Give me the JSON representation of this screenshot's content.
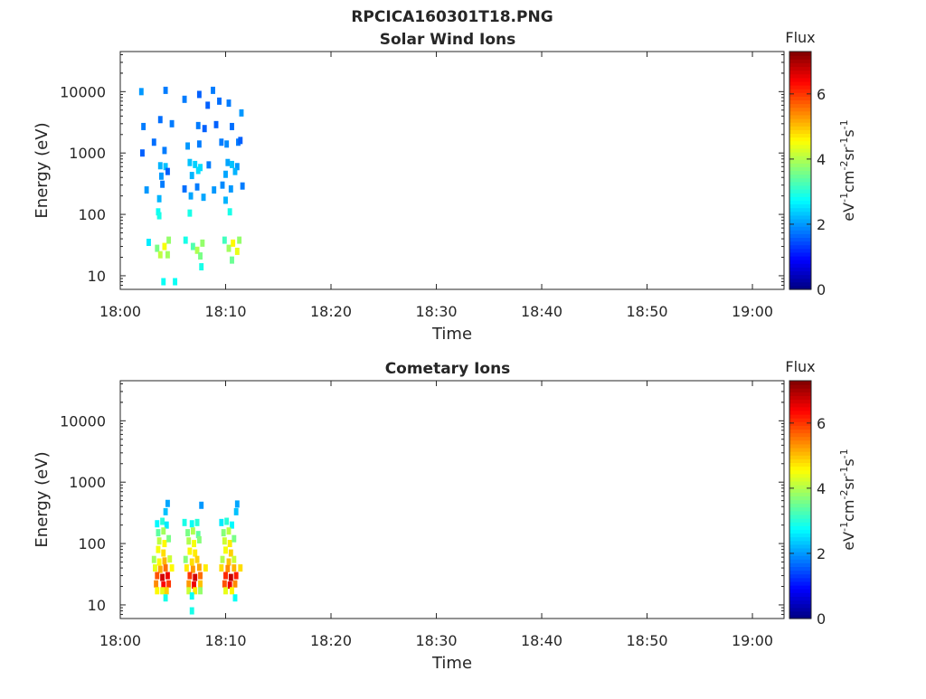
{
  "figure": {
    "title": "RPCICA160301T18.PNG"
  },
  "colorbar": {
    "label": "Flux",
    "unit_base": "eV",
    "unit_parts": [
      {
        "t": "eV",
        "sup": false
      },
      {
        "t": "-1",
        "sup": true
      },
      {
        "t": "cm",
        "sup": false
      },
      {
        "t": "-2",
        "sup": true
      },
      {
        "t": "sr",
        "sup": false
      },
      {
        "t": "-1",
        "sup": true
      },
      {
        "t": "s",
        "sup": false
      },
      {
        "t": "-1",
        "sup": true
      }
    ],
    "range": [
      0,
      7.3
    ],
    "ticks": [
      "0",
      "2",
      "4",
      "6"
    ],
    "colormap": "jet"
  },
  "chart_data": [
    {
      "type": "heatmap",
      "title": "Solar Wind Ions",
      "xlabel": "Time",
      "ylabel": "Energy (eV)",
      "xlim": [
        "18:00",
        "19:03"
      ],
      "x_ticks": [
        "18:00",
        "18:10",
        "18:20",
        "18:30",
        "18:40",
        "18:50",
        "19:00"
      ],
      "ylim": [
        6,
        45000
      ],
      "y_scale": "log",
      "y_ticks": [
        "10",
        "100",
        "1000",
        "10000"
      ],
      "cells": [
        [
          2.0,
          10000,
          2.0
        ],
        [
          4.3,
          10500,
          1.8
        ],
        [
          6.1,
          7500,
          1.8
        ],
        [
          7.5,
          9000,
          1.6
        ],
        [
          8.3,
          6000,
          1.6
        ],
        [
          8.8,
          10500,
          1.8
        ],
        [
          9.4,
          7000,
          1.7
        ],
        [
          10.3,
          6500,
          1.8
        ],
        [
          11.5,
          4500,
          2.0
        ],
        [
          2.2,
          2700,
          1.8
        ],
        [
          3.8,
          3500,
          1.7
        ],
        [
          4.9,
          3000,
          1.8
        ],
        [
          7.4,
          2800,
          1.8
        ],
        [
          8.0,
          2500,
          1.6
        ],
        [
          9.1,
          2900,
          1.6
        ],
        [
          10.6,
          2700,
          1.7
        ],
        [
          11.2,
          1500,
          1.8
        ],
        [
          2.1,
          1000,
          1.6
        ],
        [
          3.2,
          1500,
          1.7
        ],
        [
          4.2,
          1100,
          1.8
        ],
        [
          6.4,
          1300,
          2.0
        ],
        [
          7.5,
          1400,
          1.8
        ],
        [
          9.6,
          1500,
          1.8
        ],
        [
          10.1,
          1400,
          1.9
        ],
        [
          11.4,
          1600,
          1.6
        ],
        [
          3.8,
          620,
          2.2
        ],
        [
          4.3,
          600,
          2.3
        ],
        [
          6.6,
          700,
          2.3
        ],
        [
          7.1,
          650,
          2.4
        ],
        [
          7.6,
          580,
          2.5
        ],
        [
          8.4,
          640,
          1.8
        ],
        [
          10.2,
          700,
          2.1
        ],
        [
          10.6,
          650,
          2.3
        ],
        [
          11.1,
          600,
          2.0
        ],
        [
          3.9,
          420,
          2.0
        ],
        [
          4.5,
          500,
          1.6
        ],
        [
          6.8,
          430,
          2.2
        ],
        [
          7.4,
          520,
          2.5
        ],
        [
          10.0,
          450,
          2.1
        ],
        [
          10.9,
          500,
          2.2
        ],
        [
          2.5,
          250,
          2.0
        ],
        [
          4.0,
          310,
          1.8
        ],
        [
          6.1,
          260,
          1.7
        ],
        [
          7.3,
          280,
          1.8
        ],
        [
          8.9,
          250,
          2.0
        ],
        [
          9.7,
          300,
          1.9
        ],
        [
          10.5,
          260,
          2.0
        ],
        [
          11.6,
          290,
          1.8
        ],
        [
          3.7,
          180,
          2.2
        ],
        [
          6.7,
          200,
          2.1
        ],
        [
          7.9,
          190,
          2.1
        ],
        [
          10.0,
          170,
          2.2
        ],
        [
          3.6,
          110,
          2.8
        ],
        [
          3.7,
          95,
          2.9
        ],
        [
          6.6,
          105,
          2.9
        ],
        [
          10.4,
          110,
          2.9
        ],
        [
          2.7,
          35,
          2.6
        ],
        [
          3.5,
          28,
          3.6
        ],
        [
          3.8,
          22,
          4.1
        ],
        [
          4.2,
          30,
          4.5
        ],
        [
          4.6,
          38,
          3.8
        ],
        [
          4.5,
          22,
          3.9
        ],
        [
          6.2,
          38,
          2.9
        ],
        [
          6.9,
          30,
          3.3
        ],
        [
          7.3,
          26,
          4.0
        ],
        [
          7.8,
          34,
          3.8
        ],
        [
          7.6,
          21,
          3.6
        ],
        [
          7.7,
          14,
          2.9
        ],
        [
          9.9,
          38,
          3.2
        ],
        [
          10.3,
          28,
          3.9
        ],
        [
          10.7,
          34,
          4.6
        ],
        [
          11.1,
          25,
          4.4
        ],
        [
          10.6,
          18,
          3.5
        ],
        [
          11.3,
          38,
          3.8
        ],
        [
          4.1,
          8,
          2.8
        ],
        [
          5.2,
          8,
          2.8
        ]
      ]
    },
    {
      "type": "heatmap",
      "title": "Cometary Ions",
      "xlabel": "Time",
      "ylabel": "Energy (eV)",
      "xlim": [
        "18:00",
        "19:03"
      ],
      "x_ticks": [
        "18:00",
        "18:10",
        "18:20",
        "18:30",
        "18:40",
        "18:50",
        "19:00"
      ],
      "ylim": [
        6,
        45000
      ],
      "y_scale": "log",
      "y_ticks": [
        "10",
        "100",
        "1000",
        "10000"
      ],
      "cells": [
        [
          4.5,
          450,
          2.1
        ],
        [
          4.3,
          330,
          2.3
        ],
        [
          7.7,
          420,
          2.0
        ],
        [
          11.1,
          440,
          2.1
        ],
        [
          11.0,
          330,
          2.3
        ],
        [
          3.5,
          210,
          2.7
        ],
        [
          4.0,
          230,
          3.0
        ],
        [
          4.4,
          200,
          2.6
        ],
        [
          6.1,
          220,
          2.9
        ],
        [
          6.8,
          210,
          2.8
        ],
        [
          7.3,
          220,
          3.0
        ],
        [
          9.6,
          220,
          2.6
        ],
        [
          10.1,
          230,
          3.0
        ],
        [
          10.6,
          200,
          2.7
        ],
        [
          3.6,
          150,
          3.4
        ],
        [
          4.1,
          160,
          3.9
        ],
        [
          6.4,
          150,
          3.6
        ],
        [
          6.9,
          160,
          4.0
        ],
        [
          7.4,
          140,
          3.4
        ],
        [
          9.8,
          150,
          3.7
        ],
        [
          10.3,
          160,
          4.1
        ],
        [
          3.7,
          110,
          4.1
        ],
        [
          4.2,
          100,
          4.6
        ],
        [
          4.6,
          120,
          3.6
        ],
        [
          6.5,
          110,
          4.0
        ],
        [
          7.0,
          100,
          4.5
        ],
        [
          7.5,
          115,
          3.7
        ],
        [
          9.9,
          110,
          4.2
        ],
        [
          10.4,
          100,
          4.7
        ],
        [
          10.8,
          120,
          3.6
        ],
        [
          3.6,
          80,
          4.5
        ],
        [
          4.1,
          70,
          4.8
        ],
        [
          6.6,
          75,
          4.6
        ],
        [
          7.1,
          70,
          4.7
        ],
        [
          10.0,
          78,
          4.5
        ],
        [
          10.5,
          70,
          4.9
        ],
        [
          3.2,
          55,
          3.9
        ],
        [
          3.7,
          50,
          4.6
        ],
        [
          4.2,
          52,
          5.1
        ],
        [
          4.7,
          56,
          4.2
        ],
        [
          6.2,
          55,
          3.7
        ],
        [
          6.8,
          50,
          4.8
        ],
        [
          7.3,
          55,
          4.9
        ],
        [
          9.7,
          55,
          4.0
        ],
        [
          10.3,
          50,
          5.0
        ],
        [
          10.8,
          55,
          4.2
        ],
        [
          3.3,
          40,
          4.4
        ],
        [
          3.8,
          38,
          5.2
        ],
        [
          4.3,
          40,
          5.6
        ],
        [
          4.9,
          40,
          4.6
        ],
        [
          6.3,
          40,
          4.7
        ],
        [
          6.9,
          38,
          5.3
        ],
        [
          7.5,
          41,
          5.2
        ],
        [
          8.1,
          40,
          4.7
        ],
        [
          9.6,
          40,
          4.8
        ],
        [
          10.2,
          39,
          5.4
        ],
        [
          10.8,
          40,
          5.1
        ],
        [
          11.4,
          40,
          4.8
        ],
        [
          3.5,
          30,
          5.8
        ],
        [
          4.0,
          28,
          6.7
        ],
        [
          4.5,
          30,
          6.5
        ],
        [
          6.6,
          30,
          6.0
        ],
        [
          7.1,
          28,
          6.7
        ],
        [
          7.6,
          30,
          5.6
        ],
        [
          10.0,
          30,
          6.1
        ],
        [
          10.5,
          28,
          6.8
        ],
        [
          11.0,
          30,
          6.2
        ],
        [
          3.4,
          22,
          5.4
        ],
        [
          4.1,
          21,
          6.4
        ],
        [
          4.6,
          22,
          6.0
        ],
        [
          6.5,
          22,
          5.3
        ],
        [
          7.0,
          21,
          6.5
        ],
        [
          7.6,
          22,
          5.0
        ],
        [
          9.9,
          22,
          5.8
        ],
        [
          10.4,
          21,
          6.5
        ],
        [
          10.9,
          22,
          5.4
        ],
        [
          3.5,
          17,
          4.6
        ],
        [
          4.0,
          17,
          4.4
        ],
        [
          4.4,
          17,
          4.9
        ],
        [
          6.5,
          17,
          4.2
        ],
        [
          7.1,
          17,
          4.7
        ],
        [
          7.6,
          17,
          3.8
        ],
        [
          10.0,
          17,
          4.4
        ],
        [
          10.6,
          17,
          4.6
        ],
        [
          4.3,
          13,
          2.9
        ],
        [
          6.8,
          14,
          2.8
        ],
        [
          10.9,
          13,
          2.8
        ],
        [
          6.8,
          8,
          2.9
        ]
      ]
    }
  ]
}
